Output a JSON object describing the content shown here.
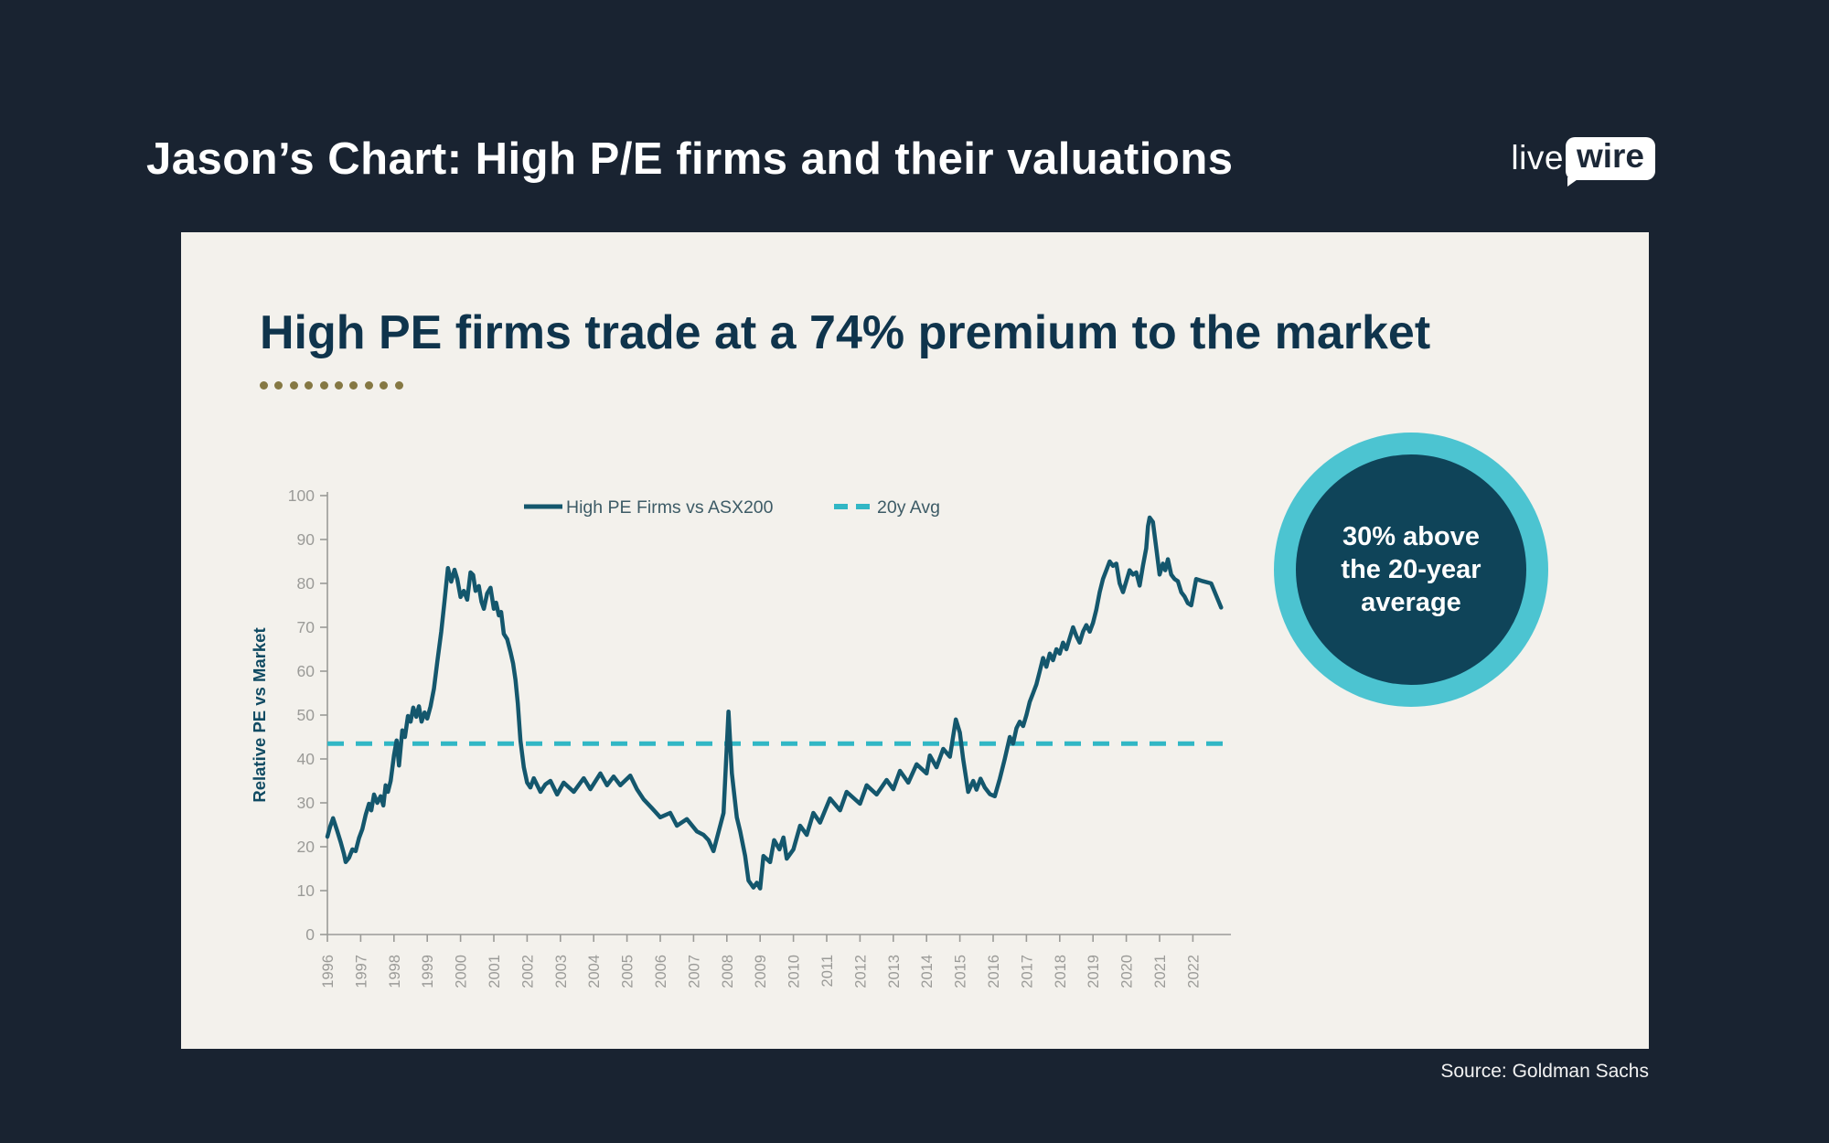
{
  "header": {
    "title": "Jason’s Chart: High P/E firms and their valuations",
    "logo_live": "live",
    "logo_wire": "wire"
  },
  "panel": {
    "title": "High PE firms trade at a 74% premium to the market",
    "accent_dot_count": 10
  },
  "badge": {
    "lines": [
      "30% above",
      "the 20-year",
      "average"
    ]
  },
  "footer": {
    "source": "Source: Goldman Sachs"
  },
  "colors": {
    "page_background": "#192331",
    "panel_background": "#f3f1ec",
    "headline_text": "#ffffff",
    "chart_title_text": "#0f344c",
    "accent_dots": "#857843",
    "series_line": "#14576d",
    "average_dashed_line": "#31b7c5",
    "legend_text": "#3d5b66",
    "axis_and_ticks": "#9b9b98",
    "y_axis_label_text": "#114b63",
    "badge_ring": "#4cc4d1",
    "badge_fill": "#0f4459",
    "badge_text": "#ffffff",
    "source_text": "#f2f2f2",
    "logo_bubble": "#ffffff",
    "logo_bubble_text": "#1b2737"
  },
  "chart_data": {
    "type": "line",
    "title": "",
    "xlabel": "",
    "ylabel": "Relative PE vs Market",
    "ylim": [
      0,
      100
    ],
    "ytick_step": 10,
    "xlim": [
      1996,
      2023
    ],
    "grid": false,
    "legend_position": "top-inside",
    "x_years": [
      1996,
      1997,
      1998,
      1999,
      2000,
      2001,
      2002,
      2003,
      2004,
      2005,
      2006,
      2007,
      2008,
      2009,
      2010,
      2011,
      2012,
      2013,
      2014,
      2015,
      2016,
      2017,
      2018,
      2019,
      2020,
      2021,
      2022
    ],
    "legend": [
      {
        "label": "High PE Firms vs ASX200",
        "style": "solid"
      },
      {
        "label": "20y Avg",
        "style": "dashed"
      }
    ],
    "average_line": {
      "label": "20y Avg",
      "value": 43.5
    },
    "series": [
      {
        "name": "High PE Firms vs ASX200",
        "points": [
          [
            1996.0,
            22.3
          ],
          [
            1996.08,
            24.5
          ],
          [
            1996.17,
            26.5
          ],
          [
            1996.3,
            23.5
          ],
          [
            1996.4,
            21
          ],
          [
            1996.5,
            18.3
          ],
          [
            1996.55,
            16.5
          ],
          [
            1996.65,
            17.5
          ],
          [
            1996.75,
            19.4
          ],
          [
            1996.85,
            19
          ],
          [
            1996.95,
            22
          ],
          [
            1997.05,
            24
          ],
          [
            1997.15,
            27.3
          ],
          [
            1997.25,
            29.8
          ],
          [
            1997.32,
            28.3
          ],
          [
            1997.4,
            31.9
          ],
          [
            1997.5,
            30
          ],
          [
            1997.6,
            31.5
          ],
          [
            1997.68,
            29.4
          ],
          [
            1997.75,
            34
          ],
          [
            1997.82,
            32.5
          ],
          [
            1997.9,
            35
          ],
          [
            1998.0,
            40.8
          ],
          [
            1998.08,
            44.2
          ],
          [
            1998.15,
            38.5
          ],
          [
            1998.25,
            46.5
          ],
          [
            1998.33,
            45
          ],
          [
            1998.42,
            49.8
          ],
          [
            1998.5,
            48.5
          ],
          [
            1998.58,
            51.7
          ],
          [
            1998.67,
            49.6
          ],
          [
            1998.75,
            52
          ],
          [
            1998.83,
            48.5
          ],
          [
            1998.92,
            50.6
          ],
          [
            1999.0,
            49.2
          ],
          [
            1999.1,
            52
          ],
          [
            1999.2,
            56
          ],
          [
            1999.3,
            62
          ],
          [
            1999.42,
            69
          ],
          [
            1999.52,
            76
          ],
          [
            1999.62,
            83.5
          ],
          [
            1999.72,
            80.4
          ],
          [
            1999.82,
            83.1
          ],
          [
            1999.9,
            81
          ],
          [
            2000.0,
            76.9
          ],
          [
            2000.1,
            78.3
          ],
          [
            2000.2,
            76.3
          ],
          [
            2000.3,
            82.5
          ],
          [
            2000.38,
            81.9
          ],
          [
            2000.45,
            78.3
          ],
          [
            2000.55,
            79.4
          ],
          [
            2000.63,
            75.8
          ],
          [
            2000.7,
            74.2
          ],
          [
            2000.8,
            77.7
          ],
          [
            2000.9,
            79
          ],
          [
            2001.0,
            74.2
          ],
          [
            2001.07,
            75.6
          ],
          [
            2001.15,
            72.7
          ],
          [
            2001.22,
            73.5
          ],
          [
            2001.3,
            68.5
          ],
          [
            2001.4,
            67.3
          ],
          [
            2001.5,
            64.4
          ],
          [
            2001.58,
            61.7
          ],
          [
            2001.65,
            58
          ],
          [
            2001.72,
            52.7
          ],
          [
            2001.8,
            44.2
          ],
          [
            2001.9,
            38.1
          ],
          [
            2002.0,
            34.6
          ],
          [
            2002.1,
            33.5
          ],
          [
            2002.2,
            35.6
          ],
          [
            2002.4,
            32.5
          ],
          [
            2002.55,
            34.2
          ],
          [
            2002.7,
            35
          ],
          [
            2002.9,
            31.9
          ],
          [
            2003.1,
            34.6
          ],
          [
            2003.4,
            32.5
          ],
          [
            2003.7,
            35.6
          ],
          [
            2003.9,
            33.1
          ],
          [
            2004.2,
            36.7
          ],
          [
            2004.4,
            34
          ],
          [
            2004.6,
            36
          ],
          [
            2004.8,
            34
          ],
          [
            2005.1,
            36.2
          ],
          [
            2005.3,
            33.1
          ],
          [
            2005.5,
            30.8
          ],
          [
            2005.75,
            28.8
          ],
          [
            2006.0,
            26.7
          ],
          [
            2006.3,
            27.7
          ],
          [
            2006.5,
            24.8
          ],
          [
            2006.8,
            26.3
          ],
          [
            2007.1,
            23.5
          ],
          [
            2007.3,
            22.7
          ],
          [
            2007.45,
            21.5
          ],
          [
            2007.6,
            19
          ],
          [
            2007.9,
            27.7
          ],
          [
            2008.05,
            50.8
          ],
          [
            2008.15,
            36.7
          ],
          [
            2008.3,
            26.7
          ],
          [
            2008.4,
            23.5
          ],
          [
            2008.55,
            17.9
          ],
          [
            2008.65,
            12.3
          ],
          [
            2008.8,
            10.7
          ],
          [
            2008.9,
            11.8
          ],
          [
            2009.0,
            10.5
          ],
          [
            2009.1,
            17.9
          ],
          [
            2009.3,
            16.5
          ],
          [
            2009.42,
            21.5
          ],
          [
            2009.58,
            19.4
          ],
          [
            2009.7,
            22.1
          ],
          [
            2009.8,
            17.3
          ],
          [
            2010.0,
            19.4
          ],
          [
            2010.2,
            24.8
          ],
          [
            2010.4,
            22.7
          ],
          [
            2010.6,
            27.7
          ],
          [
            2010.8,
            25.5
          ],
          [
            2011.1,
            31
          ],
          [
            2011.4,
            28.3
          ],
          [
            2011.6,
            32.5
          ],
          [
            2012.0,
            29.8
          ],
          [
            2012.2,
            34
          ],
          [
            2012.5,
            31.9
          ],
          [
            2012.8,
            35.2
          ],
          [
            2013.0,
            33.1
          ],
          [
            2013.2,
            37.3
          ],
          [
            2013.45,
            34.6
          ],
          [
            2013.7,
            38.8
          ],
          [
            2014.0,
            36.7
          ],
          [
            2014.1,
            40.8
          ],
          [
            2014.3,
            38.1
          ],
          [
            2014.5,
            42.3
          ],
          [
            2014.7,
            40.5
          ],
          [
            2014.88,
            49
          ],
          [
            2015.0,
            46
          ],
          [
            2015.1,
            40
          ],
          [
            2015.25,
            32.5
          ],
          [
            2015.4,
            35
          ],
          [
            2015.5,
            33
          ],
          [
            2015.62,
            35.5
          ],
          [
            2015.75,
            33.5
          ],
          [
            2015.9,
            32
          ],
          [
            2016.05,
            31.5
          ],
          [
            2016.2,
            35.5
          ],
          [
            2016.35,
            40
          ],
          [
            2016.5,
            45
          ],
          [
            2016.6,
            43.5
          ],
          [
            2016.7,
            47
          ],
          [
            2016.8,
            48.5
          ],
          [
            2016.9,
            47.5
          ],
          [
            2017.0,
            50
          ],
          [
            2017.1,
            53
          ],
          [
            2017.2,
            55
          ],
          [
            2017.3,
            57
          ],
          [
            2017.4,
            60
          ],
          [
            2017.5,
            63
          ],
          [
            2017.6,
            61
          ],
          [
            2017.7,
            64
          ],
          [
            2017.8,
            62.5
          ],
          [
            2017.9,
            65
          ],
          [
            2018.0,
            64
          ],
          [
            2018.1,
            66.5
          ],
          [
            2018.2,
            65
          ],
          [
            2018.3,
            67.5
          ],
          [
            2018.4,
            70
          ],
          [
            2018.5,
            68
          ],
          [
            2018.6,
            66.5
          ],
          [
            2018.7,
            69
          ],
          [
            2018.8,
            70.5
          ],
          [
            2018.9,
            69
          ],
          [
            2019.0,
            71
          ],
          [
            2019.1,
            74
          ],
          [
            2019.2,
            78
          ],
          [
            2019.3,
            81
          ],
          [
            2019.4,
            83
          ],
          [
            2019.5,
            85
          ],
          [
            2019.6,
            84
          ],
          [
            2019.7,
            84.5
          ],
          [
            2019.8,
            80
          ],
          [
            2019.9,
            78
          ],
          [
            2020.0,
            80.5
          ],
          [
            2020.1,
            83
          ],
          [
            2020.2,
            82
          ],
          [
            2020.3,
            82.5
          ],
          [
            2020.4,
            79.5
          ],
          [
            2020.5,
            84
          ],
          [
            2020.6,
            88
          ],
          [
            2020.65,
            93
          ],
          [
            2020.7,
            95
          ],
          [
            2020.8,
            94
          ],
          [
            2020.9,
            88
          ],
          [
            2021.0,
            82
          ],
          [
            2021.1,
            84.5
          ],
          [
            2021.17,
            83
          ],
          [
            2021.25,
            85.5
          ],
          [
            2021.35,
            82
          ],
          [
            2021.45,
            81
          ],
          [
            2021.55,
            80.5
          ],
          [
            2021.65,
            78
          ],
          [
            2021.75,
            77
          ],
          [
            2021.85,
            75.5
          ],
          [
            2021.95,
            75
          ],
          [
            2022.1,
            81
          ],
          [
            2022.3,
            80.5
          ],
          [
            2022.55,
            80
          ],
          [
            2022.85,
            74.5
          ]
        ]
      }
    ]
  }
}
